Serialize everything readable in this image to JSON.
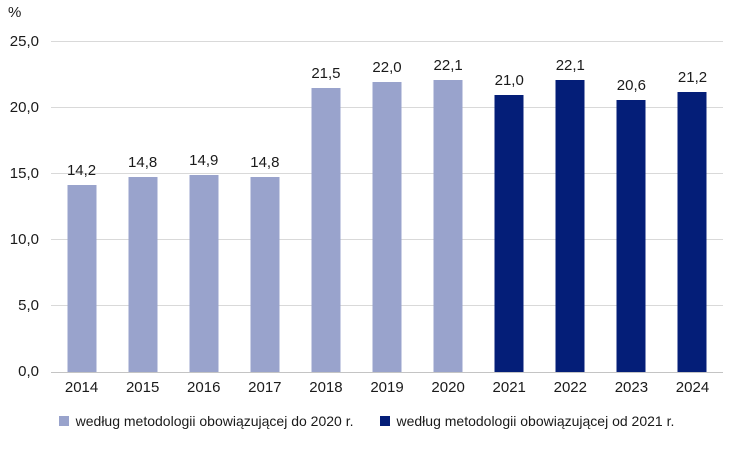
{
  "chart_data": {
    "type": "bar",
    "title": "",
    "unit_label": "%",
    "categories": [
      "2014",
      "2015",
      "2016",
      "2017",
      "2018",
      "2019",
      "2020",
      "2021",
      "2022",
      "2023",
      "2024"
    ],
    "series": [
      {
        "name": "według metodologii obowiązującej do 2020 r.",
        "color": "#99a3cc",
        "values": [
          14.2,
          14.8,
          14.9,
          14.8,
          21.5,
          22.0,
          22.1,
          null,
          null,
          null,
          null
        ],
        "value_labels": [
          "14,2",
          "14,8",
          "14,9",
          "14,8",
          "21,5",
          "22,0",
          "22,1",
          null,
          null,
          null,
          null
        ]
      },
      {
        "name": "według metodologii obowiązującej od 2021 r.",
        "color": "#041e78",
        "values": [
          null,
          null,
          null,
          null,
          null,
          null,
          null,
          21.0,
          22.1,
          20.6,
          21.2
        ],
        "value_labels": [
          null,
          null,
          null,
          null,
          null,
          null,
          null,
          "21,0",
          "22,1",
          "20,6",
          "21,2"
        ]
      }
    ],
    "ylim": [
      0,
      25
    ],
    "yticks": [
      {
        "value": 0,
        "label": "0,0"
      },
      {
        "value": 5,
        "label": "5,0"
      },
      {
        "value": 10,
        "label": "10,0"
      },
      {
        "value": 15,
        "label": "15,0"
      },
      {
        "value": 20,
        "label": "20,0"
      },
      {
        "value": 25,
        "label": "25,0"
      }
    ],
    "grid": "horizontal",
    "legend_position": "bottom"
  },
  "style": {
    "gridline_color": "#d9d9d9",
    "baseline_color": "#c4c4c4",
    "text_color": "#1a1a1a",
    "background": "#ffffff"
  }
}
